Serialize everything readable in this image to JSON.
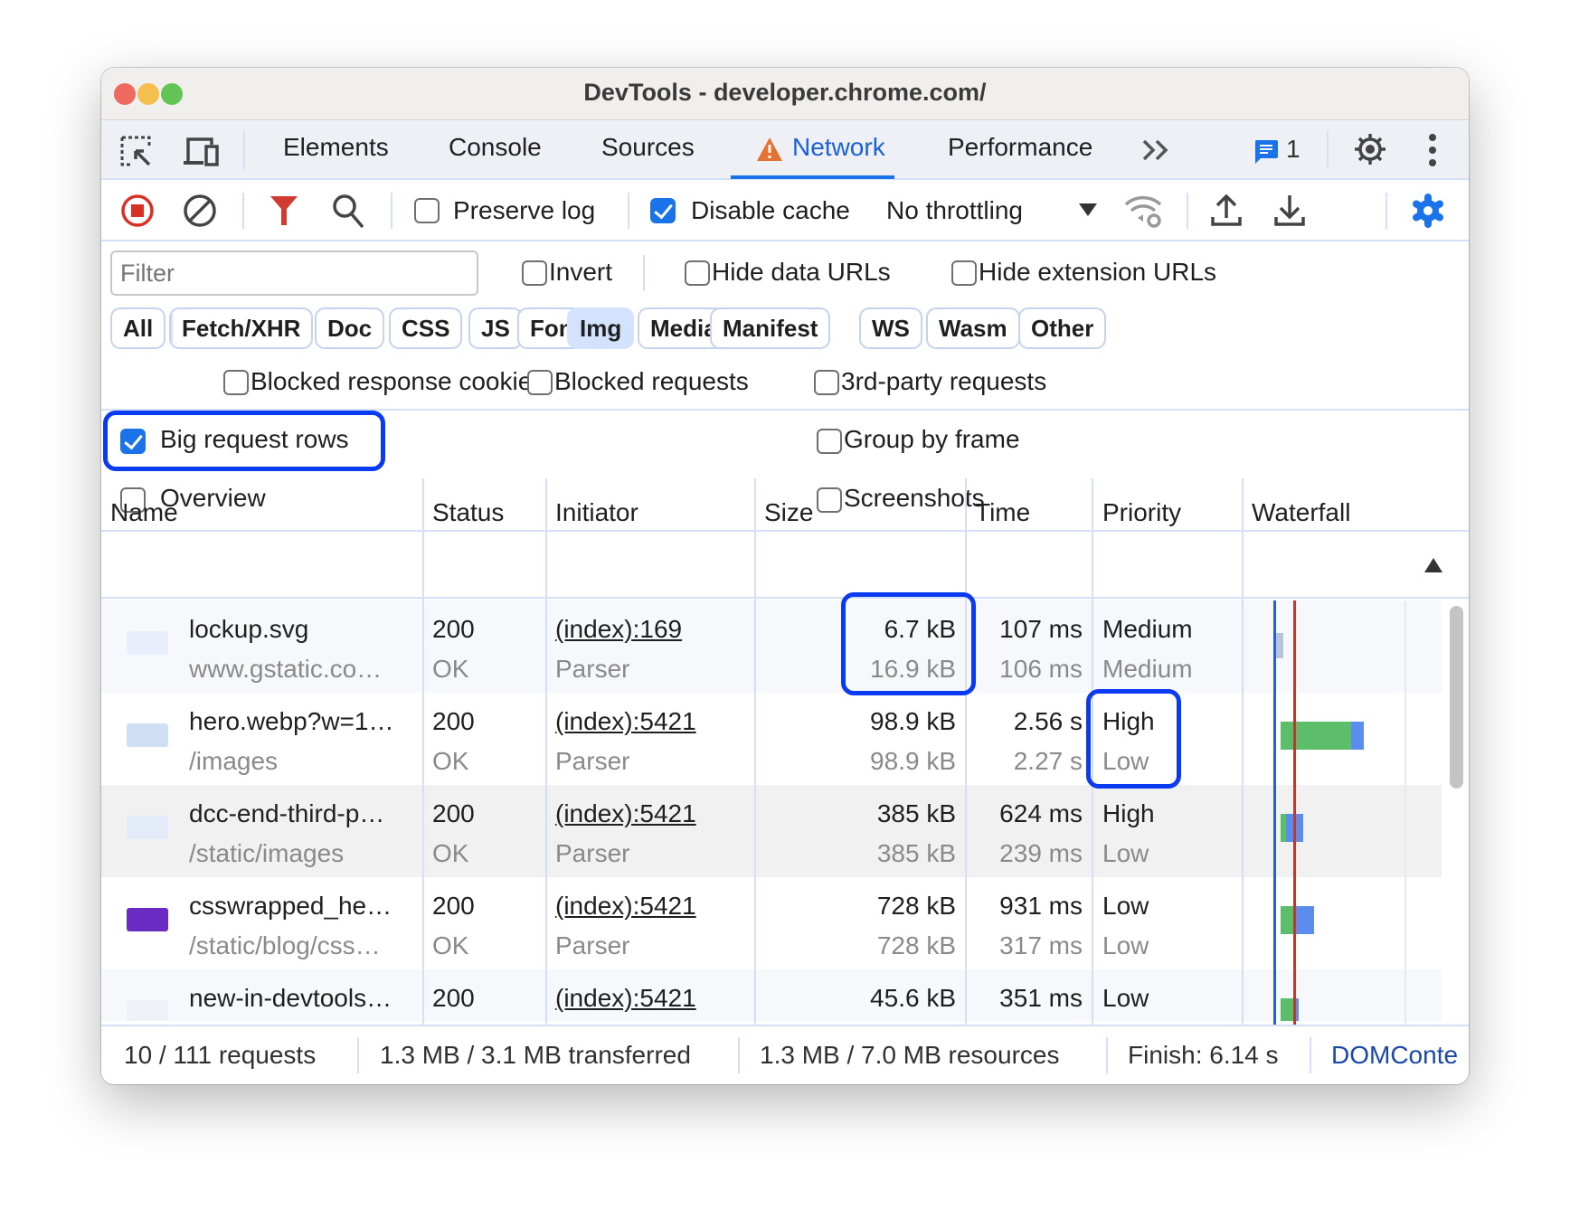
{
  "window": {
    "title": "DevTools - developer.chrome.com/"
  },
  "tabs": [
    {
      "label": "Elements"
    },
    {
      "label": "Console"
    },
    {
      "label": "Sources"
    },
    {
      "label": "Network",
      "active": true,
      "warning": true
    },
    {
      "label": "Performance"
    }
  ],
  "tabbar": {
    "more_label": ">>",
    "messages_count": "1"
  },
  "toolbar": {
    "preserve_log": {
      "label": "Preserve log",
      "checked": false
    },
    "disable_cache": {
      "label": "Disable cache",
      "checked": true
    },
    "throttling": "No throttling"
  },
  "filter": {
    "placeholder": "Filter",
    "value": "",
    "invert": "Invert",
    "hide_data_urls": "Hide data URLs",
    "hide_extension_urls": "Hide extension URLs"
  },
  "types": [
    "All",
    "Fetch/XHR",
    "Doc",
    "CSS",
    "JS",
    "Font",
    "Img",
    "Media",
    "Manifest",
    "WS",
    "Wasm",
    "Other"
  ],
  "selected_type": "Img",
  "options": {
    "blocked_cookies": "Blocked response cookies",
    "blocked_requests": "Blocked requests",
    "third_party": "3rd-party requests",
    "big_rows": "Big request rows",
    "group_by_frame": "Group by frame",
    "overview": "Overview",
    "screenshots": "Screenshots"
  },
  "table": {
    "headers": [
      "Name",
      "Status",
      "Initiator",
      "Size",
      "Time",
      "Priority",
      "Waterfall"
    ],
    "rows": [
      {
        "name": "lockup.svg",
        "path": "www.gstatic.co…",
        "status": "200",
        "status_text": "OK",
        "initiator": "(index):169",
        "initiator_type": "Parser",
        "size": "6.7 kB",
        "resource": "16.9 kB",
        "time": "107 ms",
        "latency": "106 ms",
        "priority": "Medium",
        "initial_priority": "Medium"
      },
      {
        "name": "hero.webp?w=1…",
        "path": "/images",
        "status": "200",
        "status_text": "OK",
        "initiator": "(index):5421",
        "initiator_type": "Parser",
        "size": "98.9 kB",
        "resource": "98.9 kB",
        "time": "2.56 s",
        "latency": "2.27 s",
        "priority": "High",
        "initial_priority": "Low"
      },
      {
        "name": "dcc-end-third-p…",
        "path": "/static/images",
        "status": "200",
        "status_text": "OK",
        "initiator": "(index):5421",
        "initiator_type": "Parser",
        "size": "385 kB",
        "resource": "385 kB",
        "time": "624 ms",
        "latency": "239 ms",
        "priority": "High",
        "initial_priority": "Low"
      },
      {
        "name": "csswrapped_he…",
        "path": "/static/blog/css…",
        "status": "200",
        "status_text": "OK",
        "initiator": "(index):5421",
        "initiator_type": "Parser",
        "size": "728 kB",
        "resource": "728 kB",
        "time": "931 ms",
        "latency": "317 ms",
        "priority": "Low",
        "initial_priority": "Low"
      },
      {
        "name": "new-in-devtools…",
        "path": "",
        "status": "200",
        "status_text": "",
        "initiator": "(index):5421",
        "initiator_type": "",
        "size": "45.6 kB",
        "resource": "",
        "time": "351 ms",
        "latency": "",
        "priority": "Low",
        "initial_priority": ""
      }
    ]
  },
  "footer": {
    "requests": "10 / 111 requests",
    "transferred": "1.3 MB / 3.1 MB transferred",
    "resources": "1.3 MB / 7.0 MB resources",
    "finish": "Finish: 6.14 s",
    "domcontent": "DOMConte"
  },
  "colors": {
    "accent": "#1a73e8",
    "highlight": "#0b3bf0",
    "record": "#d93025",
    "waterfall_green": "#5cbd6b",
    "waterfall_blue": "#5b8def"
  }
}
